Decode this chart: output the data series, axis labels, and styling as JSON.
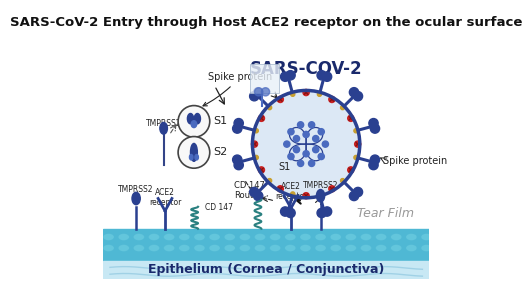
{
  "title": "SARS-CoV-2 Entry through Host ACE2 receptor on the ocular surface",
  "title_fontsize": 9.5,
  "virus_label": "SARS-COV-2",
  "virus_label_fontsize": 12,
  "spike_protein_label": "Spike protein",
  "spike_protein_label2": "Spike protein",
  "s1_label": "S1",
  "s2_label": "S2",
  "tmprss2_label": "TMPRSS2",
  "tmprss2_label2": "TMPRSS2",
  "ace2_label": "ACE2\nreceptor",
  "ace2_label2": "ACE2\nreceptor",
  "cd147_label": "CD 147",
  "cd147_route_label": "CD 147\nRoute",
  "s1_arrow_label": "S1",
  "tear_film_label": "Tear Film",
  "epithelium_label": "Epithelium (Cornea / Conjunctiva)",
  "bg_color": "#ffffff",
  "virus_body_color": "#dce8f5",
  "virus_border_color": "#2a4090",
  "spike_blue": "#2a4090",
  "spike_mid": "#4a6abf",
  "red_dot_color": "#cc2222",
  "gold_dot_color": "#c8a030",
  "rna_line_color": "#2a4090",
  "rna_dot_color": "#4a6abf",
  "epithelium_top_color": "#4fb8d4",
  "epithelium_mid_color": "#3aa0bc",
  "epithelium_bot_color": "#b8e0ee",
  "cell_dot_color": "#6ccce0",
  "teal_color": "#2a8080",
  "dark_navy": "#1a2a6c",
  "text_dark": "#222222",
  "text_gray": "#999999",
  "ann_color": "#333333"
}
